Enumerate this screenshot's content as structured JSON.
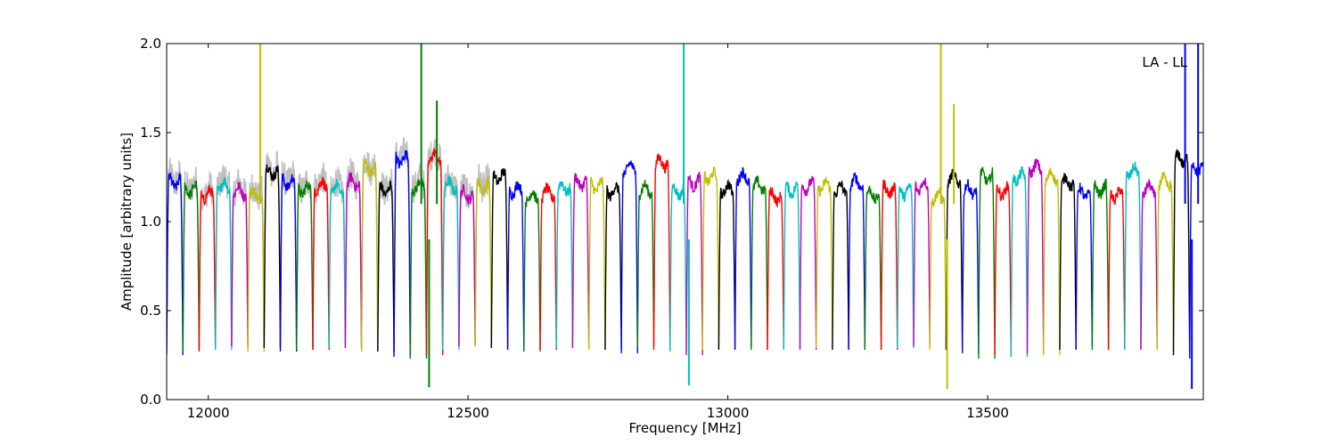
{
  "chart_data": {
    "type": "line",
    "title": "",
    "xlabel": "Frequency [MHz]",
    "ylabel": "Amplitude [arbitrary units]",
    "annotation": "LA - LL",
    "xlim": [
      11920,
      13915
    ],
    "ylim": [
      0.0,
      2.0
    ],
    "xticks": [
      12000,
      12500,
      13000,
      13500
    ],
    "yticks": [
      0.0,
      0.5,
      1.0,
      1.5,
      2.0
    ],
    "ytick_labels": [
      "0.0",
      "0.5",
      "1.0",
      "1.5",
      "2.0"
    ],
    "grid": false,
    "background_series_color": "#bfbfbf",
    "color_cycle": [
      "#0000ff",
      "#007f00",
      "#ff0000",
      "#00bfbf",
      "#bf00bf",
      "#bfbf00",
      "#000000"
    ],
    "channels": {
      "start_mhz": 11920,
      "width_mhz": 31.25,
      "count": 64,
      "plateau": [
        1.22,
        1.18,
        1.15,
        1.2,
        1.17,
        1.15,
        1.28,
        1.22,
        1.18,
        1.2,
        1.18,
        1.22,
        1.3,
        1.18,
        1.35,
        1.2,
        1.36,
        1.2,
        1.15,
        1.2,
        1.25,
        1.18,
        1.14,
        1.16,
        1.19,
        1.22,
        1.2,
        1.17,
        1.3,
        1.18,
        1.33,
        1.17,
        1.22,
        1.25,
        1.18,
        1.25,
        1.2,
        1.14,
        1.18,
        1.2,
        1.2,
        1.18,
        1.22,
        1.15,
        1.18,
        1.17,
        1.2,
        1.14,
        1.24,
        1.18,
        1.25,
        1.17,
        1.25,
        1.3,
        1.25,
        1.22,
        1.16,
        1.18,
        1.15,
        1.28,
        1.18,
        1.22,
        1.35,
        1.3
      ],
      "dip_min": [
        0.25,
        0.27,
        0.28,
        0.28,
        0.3,
        0.27,
        0.29,
        0.27,
        0.28,
        0.28,
        0.29,
        0.29,
        0.27,
        0.27,
        0.24,
        0.23,
        0.25,
        0.28,
        0.3,
        0.3,
        0.29,
        0.28,
        0.27,
        0.28,
        0.29,
        0.29,
        0.28,
        0.28,
        0.26,
        0.3,
        0.28,
        0.27,
        0.25,
        0.28,
        0.28,
        0.29,
        0.28,
        0.28,
        0.28,
        0.28,
        0.29,
        0.28,
        0.28,
        0.28,
        0.28,
        0.29,
        0.3,
        0.28,
        0.28,
        0.26,
        0.23,
        0.25,
        0.24,
        0.26,
        0.25,
        0.28,
        0.3,
        0.28,
        0.28,
        0.28,
        0.28,
        0.28,
        0.25,
        0.23
      ]
    },
    "rfi_events": [
      {
        "x": 12100,
        "y_max": 2.0,
        "color": "#bfbf00"
      },
      {
        "x": 12410,
        "y_max": 2.0,
        "color": "#007f00"
      },
      {
        "x": 12425,
        "y_min": 0.07,
        "color": "#007f00"
      },
      {
        "x": 12440,
        "y_max": 1.67,
        "color": "#007f00"
      },
      {
        "x": 12915,
        "y_max": 2.0,
        "color": "#00bfbf"
      },
      {
        "x": 12925,
        "y_min": 0.08,
        "color": "#00bfbf"
      },
      {
        "x": 13410,
        "y_max": 2.0,
        "color": "#bfbf00"
      },
      {
        "x": 13422,
        "y_min": 0.06,
        "color": "#bfbf00"
      },
      {
        "x": 13435,
        "y_max": 1.65,
        "color": "#bfbf00"
      },
      {
        "x": 13880,
        "y_max": 2.0,
        "color": "#0000ff"
      },
      {
        "x": 13893,
        "y_min": 0.06,
        "color": "#0000ff"
      },
      {
        "x": 13905,
        "y_max": 2.0,
        "color": "#0000ff"
      }
    ]
  }
}
